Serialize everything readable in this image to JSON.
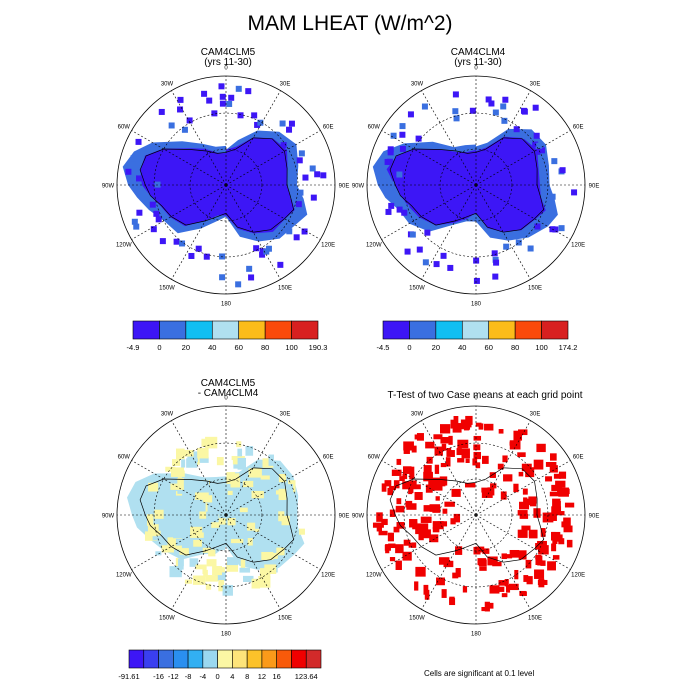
{
  "title": "MAM LHEAT (W/m^2)",
  "panels": [
    {
      "id": "clm5",
      "title_line1": "CAM4CLM5",
      "title_line2": "(yrs 11-30)",
      "lon_labels": [
        "0",
        "30E",
        "60E",
        "90E",
        "120E",
        "150E",
        "180",
        "150W",
        "120W",
        "90W",
        "60W",
        "30W"
      ]
    },
    {
      "id": "clm4",
      "title_line1": "CAM4CLM4",
      "title_line2": "(yrs 11-30)",
      "lon_labels": [
        "0",
        "30E",
        "60E",
        "90E",
        "120E",
        "150E",
        "180",
        "150W",
        "120W",
        "90W",
        "60W",
        "30W"
      ]
    },
    {
      "id": "diff",
      "title_line1": "CAM4CLM5",
      "title_line2": "- CAM4CLM4",
      "lon_labels": [
        "0",
        "30E",
        "60E",
        "90E",
        "120E",
        "150E",
        "180",
        "150W",
        "120W",
        "90W",
        "60W",
        "30W"
      ]
    },
    {
      "id": "ttest",
      "title_line1": "T-Test of two Case means at each grid point",
      "title_line2": "",
      "lon_labels": [
        "0",
        "30E",
        "60E",
        "90E",
        "120E",
        "150E",
        "180",
        "150W",
        "120W",
        "90W",
        "60W",
        "30W"
      ]
    }
  ],
  "colorbars": {
    "clm5": {
      "colors": [
        "#3d16f6",
        "#3a6fe0",
        "#12bff2",
        "#b0e0f0",
        "#fcbc1a",
        "#fa4a0a",
        "#d82020"
      ],
      "labels": [
        "-4.9",
        "0",
        "20",
        "40",
        "60",
        "80",
        "100",
        "190.3"
      ]
    },
    "clm4": {
      "colors": [
        "#3d16f6",
        "#3a6fe0",
        "#12bff2",
        "#b0e0f0",
        "#fcbc1a",
        "#fa4a0a",
        "#d82020"
      ],
      "labels": [
        "-4.5",
        "0",
        "20",
        "40",
        "60",
        "80",
        "100",
        "174.2"
      ]
    },
    "diff": {
      "colors": [
        "#3d16f6",
        "#3a3ff0",
        "#3a6fe0",
        "#2a8ff0",
        "#32aff2",
        "#9ad8f0",
        "#fbf7a4",
        "#fde47a",
        "#fcc22a",
        "#fa9a1a",
        "#f85a0a",
        "#f00000",
        "#d22a2a"
      ],
      "labels": [
        "-91.61",
        "",
        "-16",
        "-12",
        "-8",
        "-4",
        "0",
        "4",
        "8",
        "12",
        "16",
        "",
        "123.64"
      ]
    }
  },
  "footnote": "Cells are significant at 0.1 level",
  "colors": {
    "dark_blue": "#3d16f6",
    "mid_blue": "#3a6fe0",
    "light_blue": "#b0e0f0",
    "pale_yellow": "#fbf7a4",
    "red": "#f00000"
  }
}
